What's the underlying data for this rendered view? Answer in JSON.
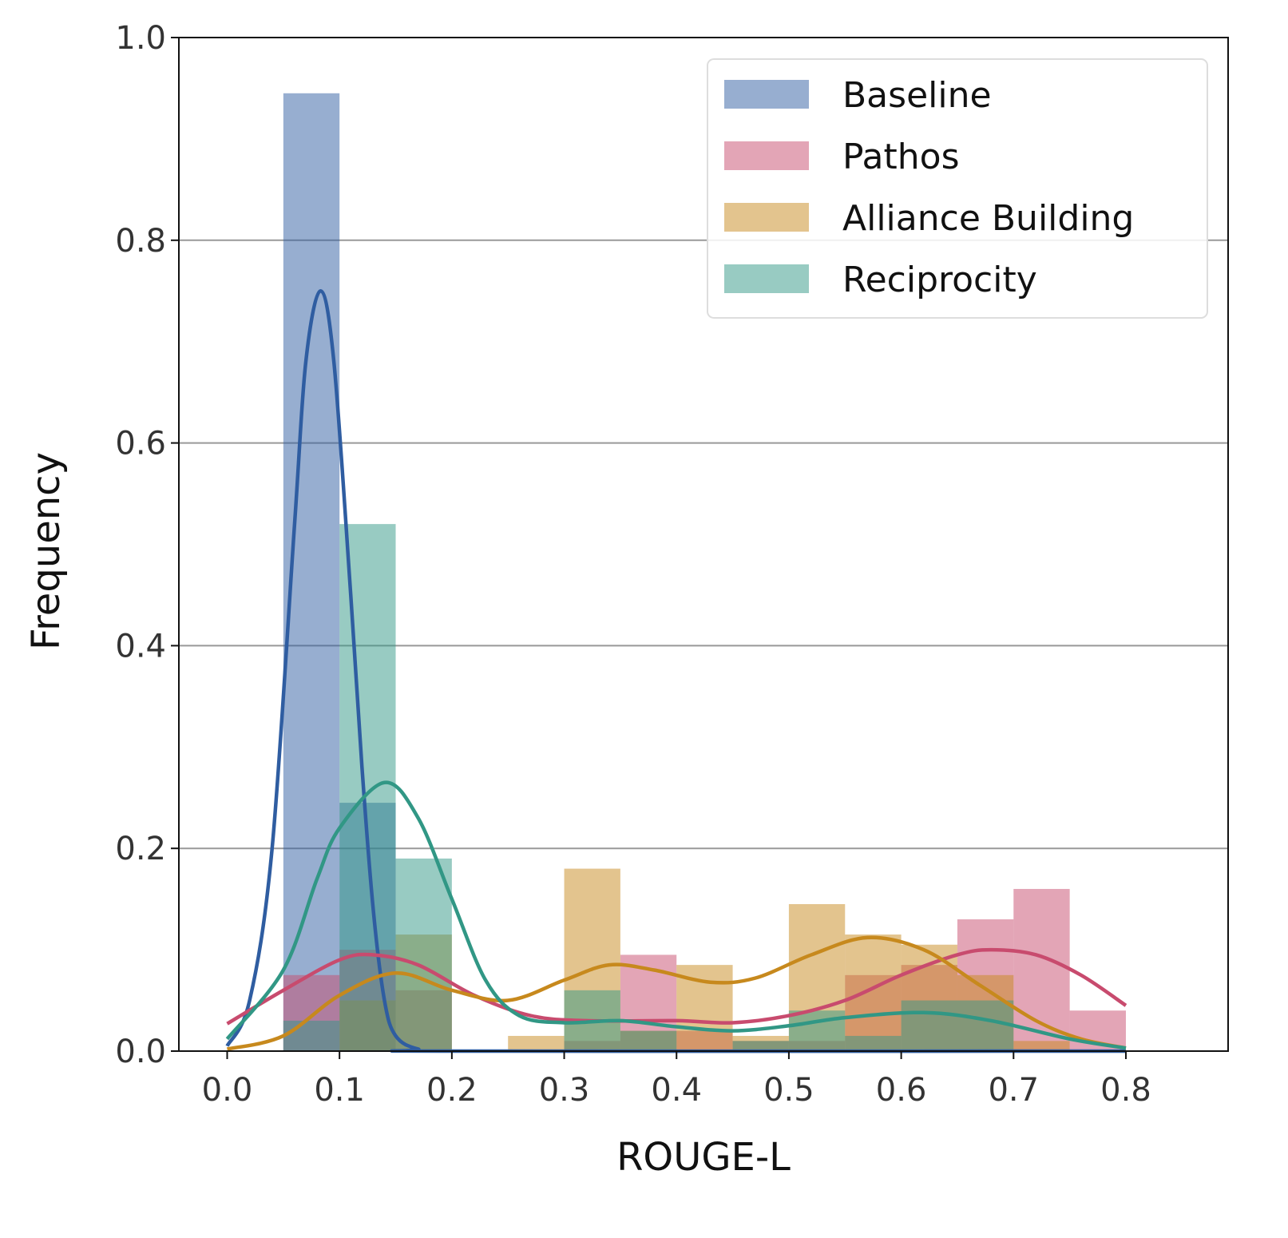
{
  "chart_data": {
    "type": "bar",
    "subtype": "overlaid histogram with KDE lines",
    "xlabel": "ROUGE-L",
    "ylabel": "Frequency",
    "xlim": [
      -0.043,
      0.891
    ],
    "ylim": [
      0,
      1.0
    ],
    "xticks": [
      "0.0",
      "0.1",
      "0.2",
      "0.3",
      "0.4",
      "0.5",
      "0.6",
      "0.7",
      "0.8"
    ],
    "yticks": [
      "0.0",
      "0.2",
      "0.4",
      "0.6",
      "0.8",
      "1.0"
    ],
    "grid": "horizontal",
    "legend_position": "top-right",
    "bin_width": 0.05,
    "bin_starts": [
      0.05,
      0.1,
      0.15,
      0.2,
      0.25,
      0.3,
      0.35,
      0.4,
      0.45,
      0.5,
      0.55,
      0.6,
      0.65,
      0.7,
      0.75
    ],
    "series": [
      {
        "name": "Baseline",
        "color": "#2f5da1",
        "values": [
          0.945,
          0.245,
          0,
          0,
          0,
          0,
          0,
          0,
          0,
          0,
          0,
          0,
          0,
          0,
          0
        ],
        "kde": [
          [
            0,
            0.005
          ],
          [
            0.02,
            0.05
          ],
          [
            0.04,
            0.2
          ],
          [
            0.06,
            0.52
          ],
          [
            0.07,
            0.68
          ],
          [
            0.083,
            0.75
          ],
          [
            0.095,
            0.68
          ],
          [
            0.11,
            0.45
          ],
          [
            0.12,
            0.28
          ],
          [
            0.13,
            0.14
          ],
          [
            0.14,
            0.05
          ],
          [
            0.15,
            0.015
          ],
          [
            0.17,
            0.002
          ],
          [
            0.2,
            0
          ],
          [
            0.8,
            0
          ]
        ]
      },
      {
        "name": "Pathos",
        "color": "#c84b6e",
        "values": [
          0.075,
          0.1,
          0.06,
          0,
          0,
          0.01,
          0.095,
          0.02,
          0.01,
          0.01,
          0.075,
          0.085,
          0.13,
          0.16,
          0.04
        ],
        "kde": [
          [
            0,
            0.027
          ],
          [
            0.05,
            0.06
          ],
          [
            0.1,
            0.09
          ],
          [
            0.13,
            0.095
          ],
          [
            0.17,
            0.085
          ],
          [
            0.22,
            0.055
          ],
          [
            0.27,
            0.035
          ],
          [
            0.32,
            0.03
          ],
          [
            0.4,
            0.03
          ],
          [
            0.45,
            0.028
          ],
          [
            0.5,
            0.035
          ],
          [
            0.55,
            0.05
          ],
          [
            0.6,
            0.075
          ],
          [
            0.65,
            0.095
          ],
          [
            0.68,
            0.1
          ],
          [
            0.72,
            0.095
          ],
          [
            0.76,
            0.075
          ],
          [
            0.8,
            0.045
          ]
        ]
      },
      {
        "name": "Alliance Building",
        "color": "#c7891d",
        "values": [
          0,
          0.05,
          0.115,
          0,
          0.015,
          0.18,
          0.02,
          0.085,
          0.015,
          0.145,
          0.115,
          0.105,
          0.075,
          0.01,
          0
        ],
        "kde": [
          [
            0,
            0.002
          ],
          [
            0.05,
            0.015
          ],
          [
            0.1,
            0.055
          ],
          [
            0.15,
            0.077
          ],
          [
            0.2,
            0.06
          ],
          [
            0.25,
            0.05
          ],
          [
            0.3,
            0.07
          ],
          [
            0.34,
            0.085
          ],
          [
            0.38,
            0.08
          ],
          [
            0.43,
            0.068
          ],
          [
            0.47,
            0.072
          ],
          [
            0.52,
            0.095
          ],
          [
            0.57,
            0.112
          ],
          [
            0.62,
            0.1
          ],
          [
            0.67,
            0.065
          ],
          [
            0.72,
            0.03
          ],
          [
            0.76,
            0.012
          ],
          [
            0.8,
            0.003
          ]
        ]
      },
      {
        "name": "Reciprocity",
        "color": "#319785",
        "values": [
          0.03,
          0.52,
          0.19,
          0,
          0,
          0.06,
          0.02,
          0,
          0.01,
          0.04,
          0.015,
          0.05,
          0.05,
          0,
          0
        ],
        "kde": [
          [
            0,
            0.012
          ],
          [
            0.05,
            0.08
          ],
          [
            0.08,
            0.17
          ],
          [
            0.1,
            0.22
          ],
          [
            0.14,
            0.265
          ],
          [
            0.17,
            0.23
          ],
          [
            0.2,
            0.15
          ],
          [
            0.23,
            0.07
          ],
          [
            0.26,
            0.035
          ],
          [
            0.3,
            0.028
          ],
          [
            0.35,
            0.03
          ],
          [
            0.4,
            0.024
          ],
          [
            0.45,
            0.02
          ],
          [
            0.5,
            0.025
          ],
          [
            0.55,
            0.033
          ],
          [
            0.62,
            0.038
          ],
          [
            0.68,
            0.03
          ],
          [
            0.75,
            0.012
          ],
          [
            0.8,
            0.003
          ]
        ]
      }
    ]
  }
}
